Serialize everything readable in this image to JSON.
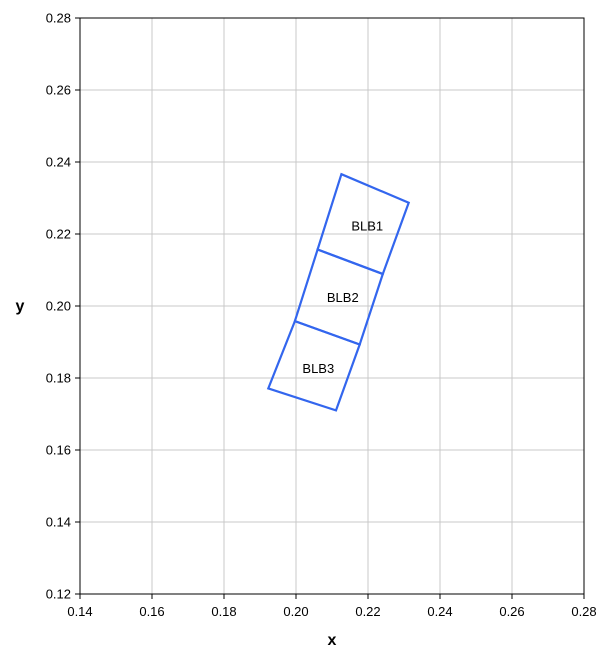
{
  "chart_data": {
    "type": "scatter",
    "title": "",
    "xlabel": "x",
    "ylabel": "y",
    "xlim": [
      0.14,
      0.28
    ],
    "ylim": [
      0.12,
      0.28
    ],
    "xticks": [
      "0.14",
      "0.16",
      "0.18",
      "0.20",
      "0.22",
      "0.24",
      "0.26",
      "0.28"
    ],
    "yticks": [
      "0.12",
      "0.14",
      "0.16",
      "0.18",
      "0.20",
      "0.22",
      "0.24",
      "0.26",
      "0.28"
    ],
    "grid": true,
    "colors": {
      "outline": "#3366ee",
      "grid": "#c8c8c8",
      "axis": "#000000"
    },
    "bins": [
      {
        "label": "BLB1",
        "corners": [
          [
            0.2126,
            0.2366
          ],
          [
            0.2313,
            0.2287
          ],
          [
            0.2241,
            0.2089
          ],
          [
            0.206,
            0.2157
          ]
        ],
        "label_at": [
          0.2198,
          0.2222
        ]
      },
      {
        "label": "BLB2",
        "corners": [
          [
            0.206,
            0.2157
          ],
          [
            0.2241,
            0.2089
          ],
          [
            0.2177,
            0.1893
          ],
          [
            0.1997,
            0.1958
          ]
        ],
        "label_at": [
          0.213,
          0.2023
        ]
      },
      {
        "label": "BLB3",
        "corners": [
          [
            0.1997,
            0.1958
          ],
          [
            0.2177,
            0.1893
          ],
          [
            0.2111,
            0.171
          ],
          [
            0.1923,
            0.1771
          ]
        ],
        "label_at": [
          0.2062,
          0.1826
        ]
      }
    ]
  }
}
